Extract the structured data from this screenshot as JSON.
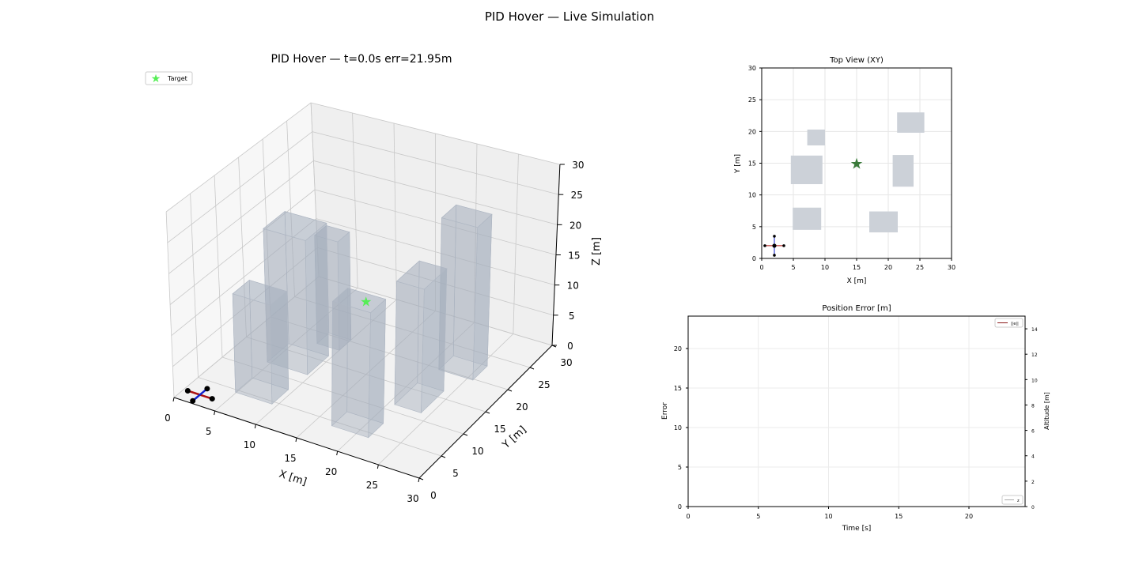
{
  "figure_title": "PID Hover — Live Simulation",
  "chart_data": [
    {
      "type": "scatter3d",
      "title": "PID Hover — t=0.0s  err=21.95m",
      "xlabel": "X [m]",
      "ylabel": "Y [m]",
      "zlabel": "Z [m]",
      "xlim": [
        0,
        30
      ],
      "ylim": [
        0,
        30
      ],
      "zlim": [
        0,
        30
      ],
      "xticks": [
        "0",
        "5",
        "10",
        "15",
        "20",
        "25",
        "30"
      ],
      "yticks": [
        "0",
        "5",
        "10",
        "15",
        "20",
        "25",
        "30"
      ],
      "zticks": [
        "0",
        "5",
        "10",
        "15",
        "20",
        "25",
        "30"
      ],
      "legend": [
        {
          "label": "Target",
          "color": "#55ee55",
          "marker": "star"
        }
      ],
      "legend_placement": "top-left",
      "target": {
        "x": 15,
        "y": 15,
        "z": 12,
        "color": "#55ee55"
      },
      "drone": {
        "x": 2,
        "y": 2,
        "z": 0,
        "arm": 1.5,
        "arm1_color": "#aa1111",
        "arm2_color": "#1122cc"
      },
      "buildings": [
        {
          "x": [
            7.2,
            10.0
          ],
          "y": [
            17.8,
            20.3
          ],
          "h": 18
        },
        {
          "x": [
            4.6,
            9.6
          ],
          "y": [
            11.7,
            16.2
          ],
          "h": 22
        },
        {
          "x": [
            21.4,
            25.7
          ],
          "y": [
            19.8,
            23.0
          ],
          "h": 25
        },
        {
          "x": [
            20.7,
            24.0
          ],
          "y": [
            11.3,
            16.3
          ],
          "h": 20
        },
        {
          "x": [
            4.9,
            9.4
          ],
          "y": [
            4.5,
            8.0
          ],
          "h": 16
        },
        {
          "x": [
            17.0,
            21.5
          ],
          "y": [
            4.1,
            7.4
          ],
          "h": 20
        }
      ],
      "building_color": "#a3adbb"
    },
    {
      "type": "scatter",
      "title": "Top View (XY)",
      "xlabel": "X [m]",
      "ylabel": "Y [m]",
      "xlim": [
        0,
        30
      ],
      "ylim": [
        0,
        30
      ],
      "xticks": [
        "0",
        "5",
        "10",
        "15",
        "20",
        "25",
        "30"
      ],
      "yticks": [
        "0",
        "5",
        "10",
        "15",
        "20",
        "25",
        "30"
      ],
      "grid": true,
      "target": {
        "x": 15,
        "y": 15,
        "color": "#3a7a3a"
      }
    },
    {
      "type": "line",
      "title": "Position Error [m]",
      "xlabel": "Time [s]",
      "ylabel": "Error",
      "y2label": "Altitude [m]",
      "xlim": [
        0,
        24
      ],
      "ylim": [
        0,
        24.1
      ],
      "y2lim": [
        0,
        15
      ],
      "xticks": [
        "0",
        "5",
        "10",
        "15",
        "20"
      ],
      "yticks": [
        "0",
        "5",
        "10",
        "15",
        "20"
      ],
      "y2ticks": [
        "0",
        "2",
        "4",
        "6",
        "8",
        "10",
        "12",
        "14"
      ],
      "grid": true,
      "series": [
        {
          "name": "||e||",
          "color": "#8b1a1a",
          "x": [],
          "y": []
        },
        {
          "name": "z",
          "color": "#aaaaaa",
          "axis": "right",
          "x": [],
          "y": []
        }
      ],
      "legend_placement": [
        "upper-right",
        "lower-right"
      ]
    }
  ]
}
